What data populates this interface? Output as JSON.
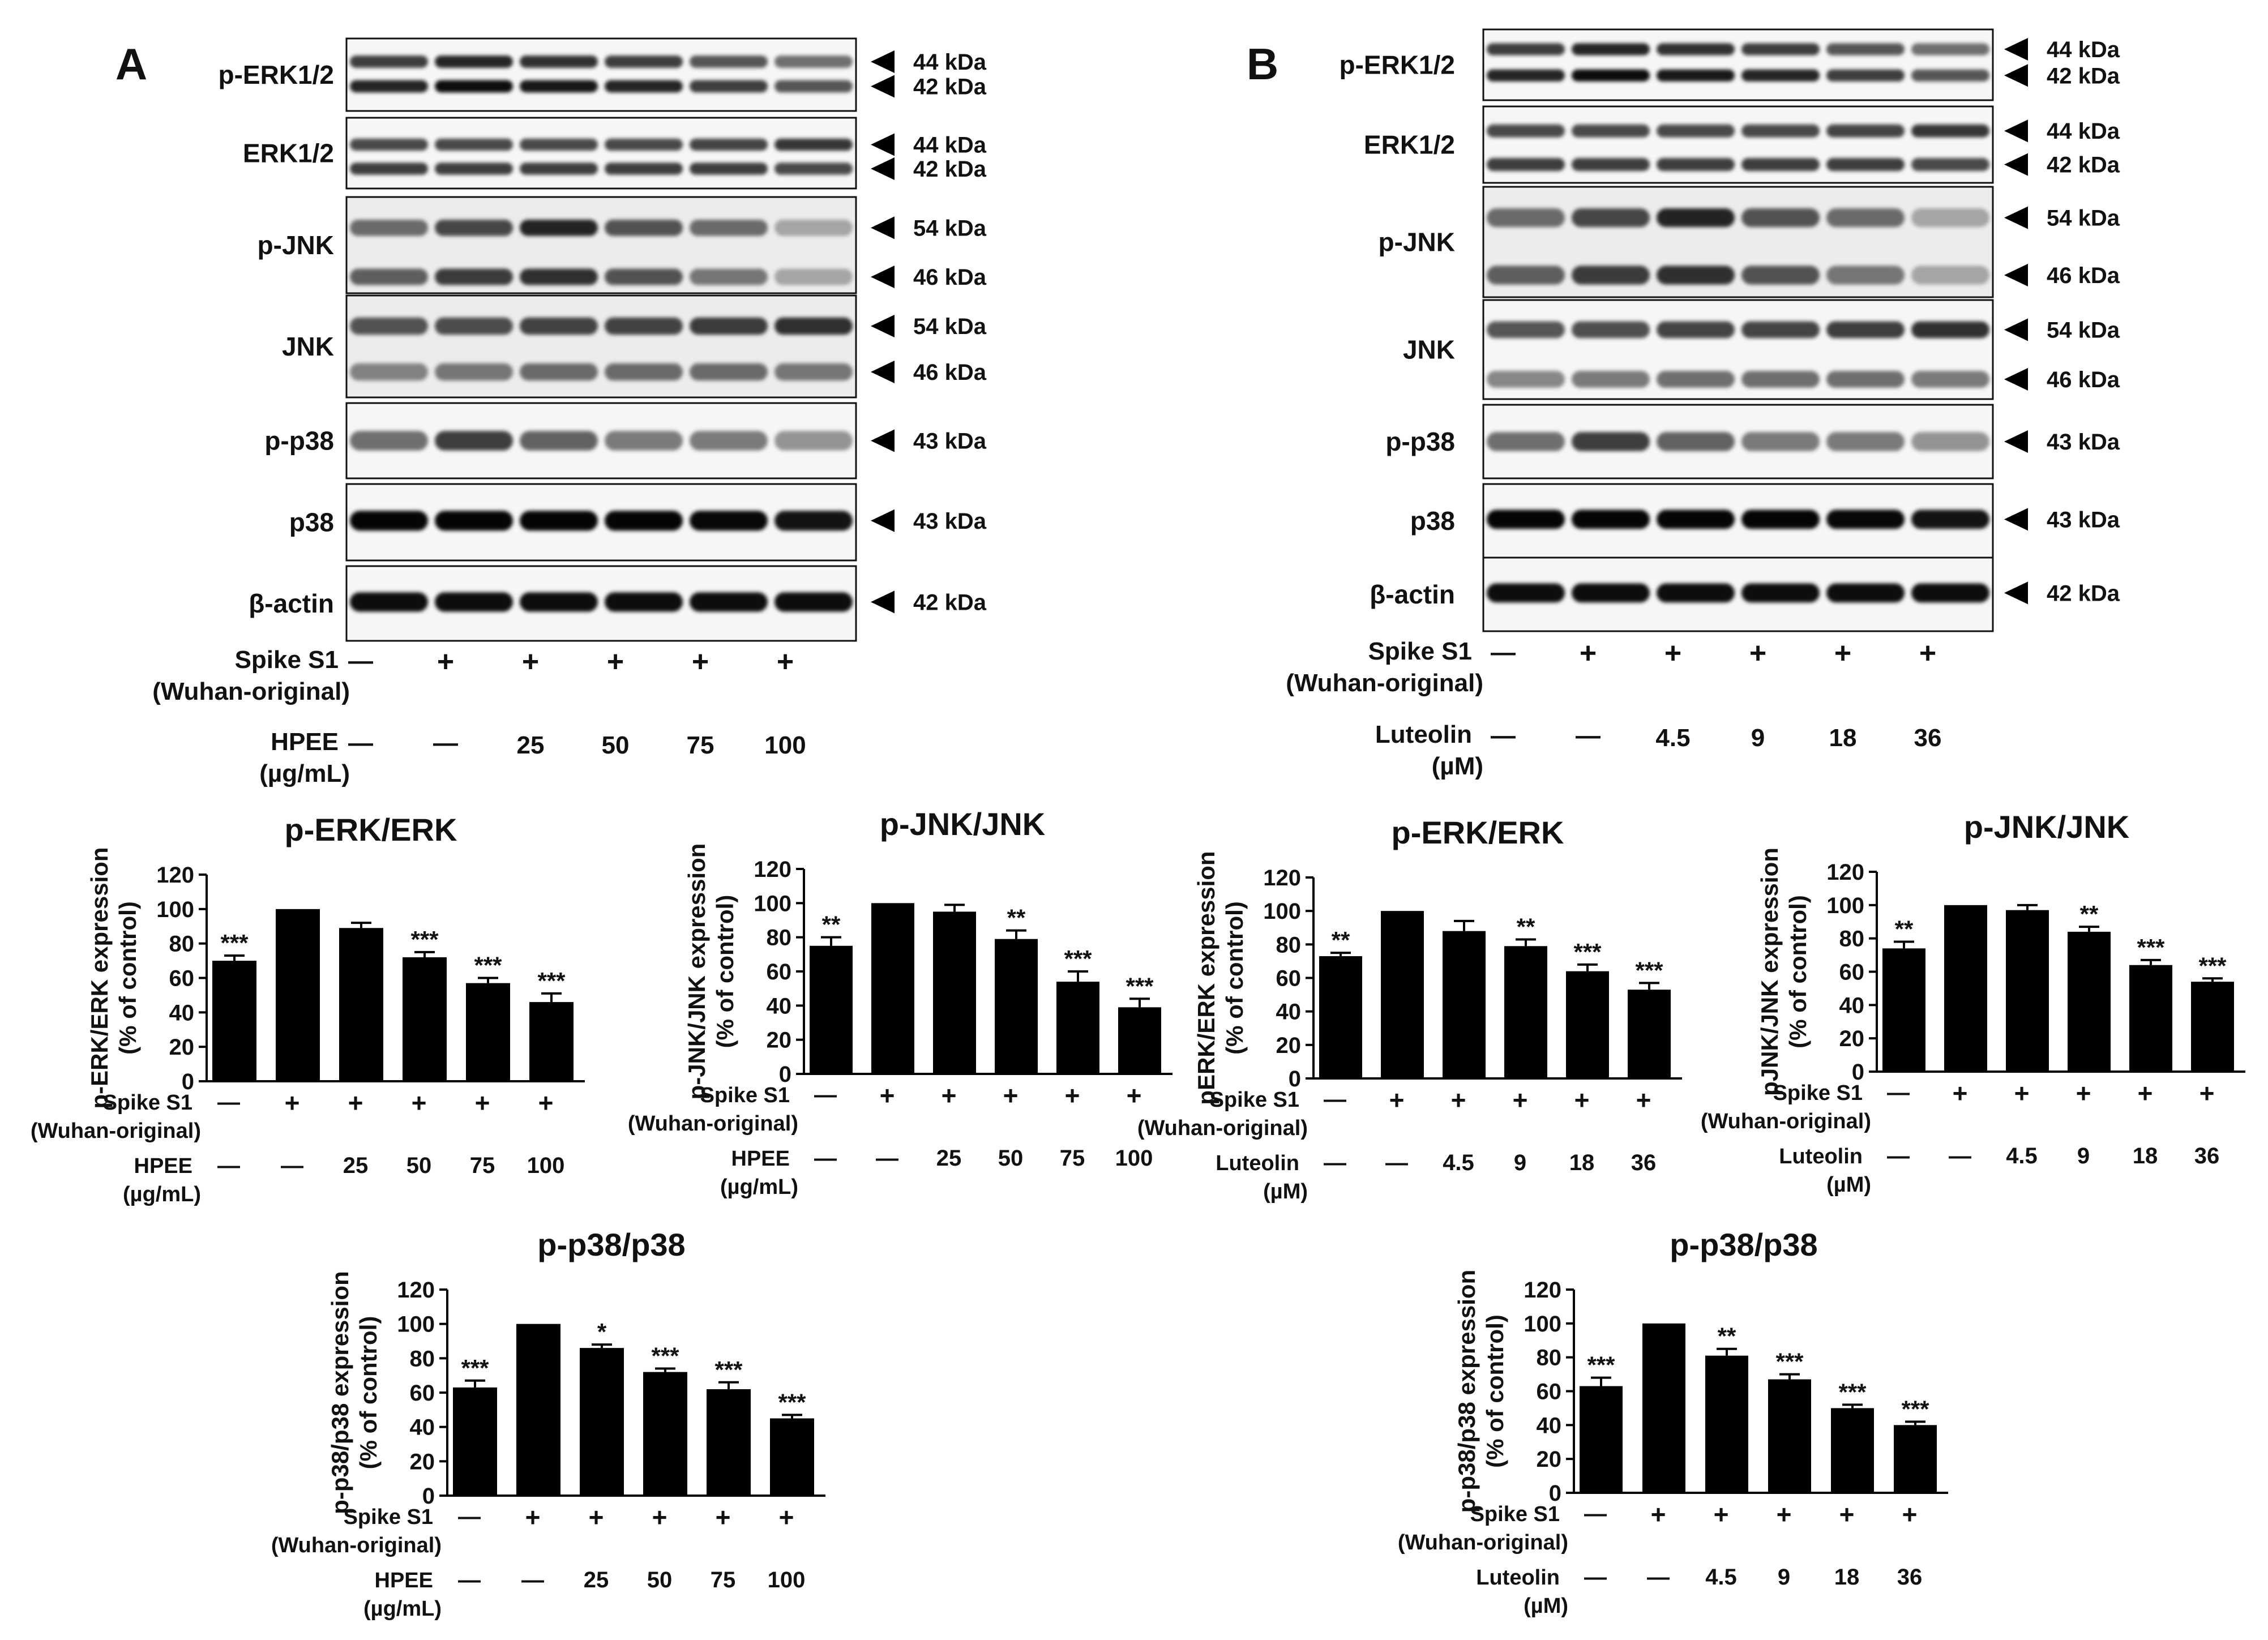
{
  "panels": [
    {
      "letter": "A",
      "blots": [
        {
          "label": "p-ERK1/2",
          "markers": [
            "44 kDa",
            "42 kDa"
          ]
        },
        {
          "label": "ERK1/2",
          "markers": [
            "44 kDa",
            "42 kDa"
          ]
        },
        {
          "label": "p-JNK",
          "markers": [
            "54 kDa",
            "46 kDa"
          ]
        },
        {
          "label": "JNK",
          "markers": [
            "54 kDa",
            "46 kDa"
          ]
        },
        {
          "label": "p-p38",
          "markers": [
            "43 kDa"
          ]
        },
        {
          "label": "p38",
          "markers": [
            "43 kDa"
          ]
        },
        {
          "label": "β-actin",
          "markers": [
            "42 kDa"
          ]
        }
      ],
      "conditions": [
        {
          "label": [
            "Spike S1",
            "(Wuhan-original)"
          ],
          "values": [
            "—",
            "+",
            "+",
            "+",
            "+",
            "+"
          ]
        },
        {
          "label": [
            "HPEE",
            "(µg/mL)"
          ],
          "values": [
            "—",
            "—",
            "25",
            "50",
            "75",
            "100"
          ]
        }
      ]
    },
    {
      "letter": "B",
      "blots": [
        {
          "label": "p-ERK1/2",
          "markers": [
            "44 kDa",
            "42 kDa"
          ]
        },
        {
          "label": "ERK1/2",
          "markers": [
            "44 kDa",
            "42 kDa"
          ]
        },
        {
          "label": "p-JNK",
          "markers": [
            "54 kDa",
            "46 kDa"
          ]
        },
        {
          "label": "JNK",
          "markers": [
            "54 kDa",
            "46 kDa"
          ]
        },
        {
          "label": "p-p38",
          "markers": [
            "43 kDa"
          ]
        },
        {
          "label": "p38",
          "markers": [
            "43 kDa"
          ]
        },
        {
          "label": "β-actin",
          "markers": [
            "42 kDa"
          ]
        }
      ],
      "conditions": [
        {
          "label": [
            "Spike S1",
            "(Wuhan-original)"
          ],
          "values": [
            "—",
            "+",
            "+",
            "+",
            "+",
            "+"
          ]
        },
        {
          "label": [
            "Luteolin",
            "(µM)"
          ],
          "values": [
            "—",
            "—",
            "4.5",
            "9",
            "18",
            "36"
          ]
        }
      ]
    }
  ],
  "chart_data": [
    {
      "type": "bar",
      "panel": "A",
      "title": "p-ERK/ERK",
      "ylabel": [
        "p-ERK/ERK expression",
        "(% of control)"
      ],
      "ylim": [
        0,
        120
      ],
      "yticks": [
        0,
        20,
        40,
        60,
        80,
        100,
        120
      ],
      "values": [
        70,
        100,
        89,
        72,
        57,
        46
      ],
      "errors": [
        3,
        0,
        3,
        3,
        3,
        5
      ],
      "significance": [
        "***",
        "",
        "",
        "***",
        "***",
        "***"
      ],
      "rows": [
        {
          "label": [
            "Spike S1",
            "(Wuhan-original)"
          ],
          "values": [
            "—",
            "+",
            "+",
            "+",
            "+",
            "+"
          ]
        },
        {
          "label": [
            "HPEE",
            "(µg/mL)"
          ],
          "values": [
            "—",
            "—",
            "25",
            "50",
            "75",
            "100"
          ]
        }
      ]
    },
    {
      "type": "bar",
      "panel": "A",
      "title": "p-JNK/JNK",
      "ylabel": [
        "p-JNK/JNK expression",
        "(% of control)"
      ],
      "ylim": [
        0,
        120
      ],
      "yticks": [
        0,
        20,
        40,
        60,
        80,
        100,
        120
      ],
      "values": [
        75,
        100,
        95,
        79,
        54,
        39
      ],
      "errors": [
        5,
        0,
        4,
        5,
        6,
        5
      ],
      "significance": [
        "**",
        "",
        "",
        "**",
        "***",
        "***"
      ],
      "rows": [
        {
          "label": [
            "Spike S1",
            "(Wuhan-original)"
          ],
          "values": [
            "—",
            "+",
            "+",
            "+",
            "+",
            "+"
          ]
        },
        {
          "label": [
            "HPEE",
            "(µg/mL)"
          ],
          "values": [
            "—",
            "—",
            "25",
            "50",
            "75",
            "100"
          ]
        }
      ]
    },
    {
      "type": "bar",
      "panel": "A",
      "title": "p-p38/p38",
      "ylabel": [
        "p-p38/p38 expression",
        "(% of control)"
      ],
      "ylim": [
        0,
        120
      ],
      "yticks": [
        0,
        20,
        40,
        60,
        80,
        100,
        120
      ],
      "values": [
        63,
        100,
        86,
        72,
        62,
        45
      ],
      "errors": [
        4,
        0,
        2,
        2,
        4,
        2
      ],
      "significance": [
        "***",
        "",
        "*",
        "***",
        "***",
        "***"
      ],
      "rows": [
        {
          "label": [
            "Spike S1",
            "(Wuhan-original)"
          ],
          "values": [
            "—",
            "+",
            "+",
            "+",
            "+",
            "+"
          ]
        },
        {
          "label": [
            "HPEE",
            "(µg/mL)"
          ],
          "values": [
            "—",
            "—",
            "25",
            "50",
            "75",
            "100"
          ]
        }
      ]
    },
    {
      "type": "bar",
      "panel": "B",
      "title": "p-ERK/ERK",
      "ylabel": [
        "pERK/ERK expression",
        "(% of control)"
      ],
      "ylim": [
        0,
        120
      ],
      "yticks": [
        0,
        20,
        40,
        60,
        80,
        100,
        120
      ],
      "values": [
        73,
        100,
        88,
        79,
        64,
        53
      ],
      "errors": [
        2,
        0,
        6,
        4,
        4,
        4
      ],
      "significance": [
        "**",
        "",
        "",
        "**",
        "***",
        "***"
      ],
      "rows": [
        {
          "label": [
            "Spike S1",
            "(Wuhan-original)"
          ],
          "values": [
            "—",
            "+",
            "+",
            "+",
            "+",
            "+"
          ]
        },
        {
          "label": [
            "Luteolin",
            "(µM)"
          ],
          "values": [
            "—",
            "—",
            "4.5",
            "9",
            "18",
            "36"
          ]
        }
      ]
    },
    {
      "type": "bar",
      "panel": "B",
      "title": "p-JNK/JNK",
      "ylabel": [
        "pJNK/JNK expression",
        "(% of control)"
      ],
      "ylim": [
        0,
        120
      ],
      "yticks": [
        0,
        20,
        40,
        60,
        80,
        100,
        120
      ],
      "values": [
        74,
        100,
        97,
        84,
        64,
        54
      ],
      "errors": [
        4,
        0,
        3,
        3,
        3,
        2
      ],
      "significance": [
        "**",
        "",
        "",
        "**",
        "***",
        "***"
      ],
      "rows": [
        {
          "label": [
            "Spike S1",
            "(Wuhan-original)"
          ],
          "values": [
            "—",
            "+",
            "+",
            "+",
            "+",
            "+"
          ]
        },
        {
          "label": [
            "Luteolin",
            "(µM)"
          ],
          "values": [
            "—",
            "—",
            "4.5",
            "9",
            "18",
            "36"
          ]
        }
      ]
    },
    {
      "type": "bar",
      "panel": "B",
      "title": "p-p38/p38",
      "ylabel": [
        "p-p38/p38 expression",
        "(% of control)"
      ],
      "ylim": [
        0,
        120
      ],
      "yticks": [
        0,
        20,
        40,
        60,
        80,
        100,
        120
      ],
      "values": [
        63,
        100,
        81,
        67,
        50,
        40
      ],
      "errors": [
        5,
        0,
        4,
        3,
        2,
        2
      ],
      "significance": [
        "***",
        "",
        "**",
        "***",
        "***",
        "***"
      ],
      "rows": [
        {
          "label": [
            "Spike S1",
            "(Wuhan-original)"
          ],
          "values": [
            "—",
            "+",
            "+",
            "+",
            "+",
            "+"
          ]
        },
        {
          "label": [
            "Luteolin",
            "(µM)"
          ],
          "values": [
            "—",
            "—",
            "4.5",
            "9",
            "18",
            "36"
          ]
        }
      ]
    }
  ]
}
